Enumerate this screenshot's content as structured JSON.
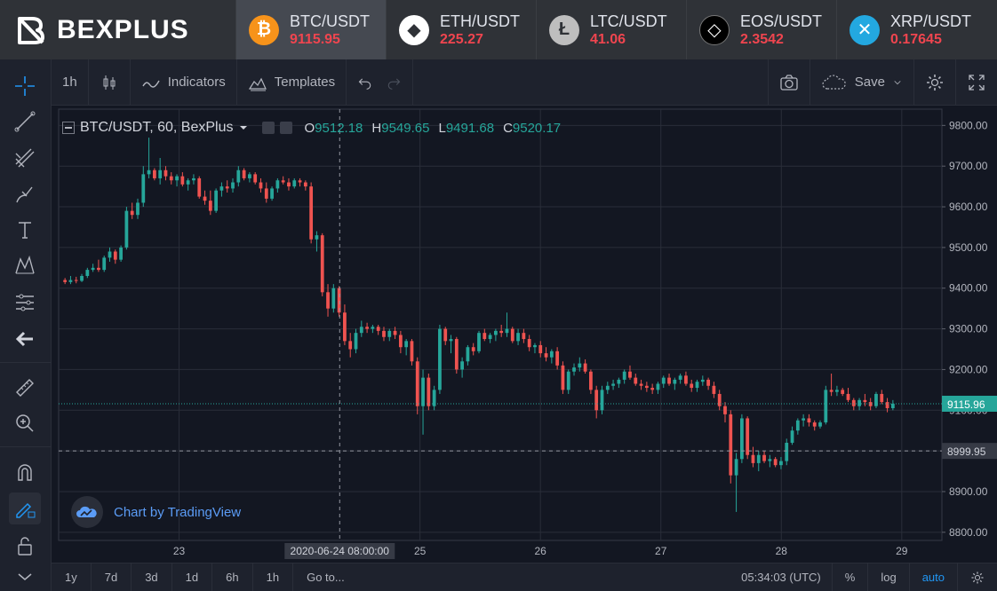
{
  "brand": {
    "name": "BEXPLUS"
  },
  "tickers": [
    {
      "pair": "BTC/USDT",
      "price": "9115.95",
      "icon": "bitcoin-icon",
      "color": "#f7931a",
      "glyph": "₿",
      "active": true
    },
    {
      "pair": "ETH/USDT",
      "price": "225.27",
      "icon": "ethereum-icon",
      "color": "#ffffff",
      "glyph": "◆",
      "active": false
    },
    {
      "pair": "LTC/USDT",
      "price": "41.06",
      "icon": "litecoin-icon",
      "color": "#bebebe",
      "glyph": "Ł",
      "active": false
    },
    {
      "pair": "EOS/USDT",
      "price": "2.3542",
      "icon": "eos-icon",
      "color": "#000000",
      "glyph": "◇",
      "active": false
    },
    {
      "pair": "XRP/USDT",
      "price": "0.17645",
      "icon": "ripple-icon",
      "color": "#23a8e0",
      "glyph": "✕",
      "active": false
    }
  ],
  "toolbar": {
    "interval": "1h",
    "indicators": "Indicators",
    "templates": "Templates",
    "save": "Save"
  },
  "legend": {
    "symbol": "BTC/USDT, 60, BexPlus",
    "open_label": "O",
    "open": "9512.18",
    "high_label": "H",
    "high": "9549.65",
    "low_label": "L",
    "low": "9491.68",
    "close_label": "C",
    "close": "9520.17"
  },
  "watermark": "Chart by TradingView",
  "bottombar": {
    "timeframes": [
      "1y",
      "7d",
      "3d",
      "1d",
      "6h",
      "1h"
    ],
    "goto": "Go to...",
    "clock": "05:34:03 (UTC)",
    "percent": "%",
    "log": "log",
    "auto": "auto"
  },
  "colors": {
    "up": "#26a69a",
    "down": "#ef5350",
    "grid": "#2a2e39",
    "bg": "#131722"
  },
  "chart_data": {
    "type": "candlestick",
    "ylim": [
      8780,
      9840
    ],
    "yticks": [
      8800,
      8900,
      9000,
      9100,
      9200,
      9300,
      9400,
      9500,
      9600,
      9700,
      9800
    ],
    "ytick_labels": [
      "8800.00",
      "8900.00",
      "9000.00",
      "9100.00",
      "9200.00",
      "9300.00",
      "9400.00",
      "9500.00",
      "9600.00",
      "9700.00",
      "9800.00"
    ],
    "x_start_hour": 0,
    "x_end_hour": 176,
    "xticks": [
      {
        "label": "23",
        "hour": 24
      },
      {
        "label": "25",
        "hour": 72
      },
      {
        "label": "26",
        "hour": 96
      },
      {
        "label": "27",
        "hour": 120
      },
      {
        "label": "28",
        "hour": 144
      },
      {
        "label": "29",
        "hour": 168
      }
    ],
    "crosshair": {
      "hour": 56,
      "price": 8999.95,
      "time_label": "2020-06-24 08:00:00",
      "price_label": "8999.95"
    },
    "last_price": {
      "price": 9115.96,
      "label": "9115.96"
    },
    "candles": [
      [
        9420,
        9425,
        9410,
        9415
      ],
      [
        9415,
        9430,
        9410,
        9420
      ],
      [
        9420,
        9428,
        9412,
        9418
      ],
      [
        9418,
        9435,
        9415,
        9430
      ],
      [
        9430,
        9450,
        9425,
        9445
      ],
      [
        9445,
        9460,
        9440,
        9450
      ],
      [
        9450,
        9470,
        9440,
        9445
      ],
      [
        9445,
        9480,
        9440,
        9475
      ],
      [
        9475,
        9500,
        9465,
        9490
      ],
      [
        9490,
        9495,
        9460,
        9470
      ],
      [
        9470,
        9505,
        9465,
        9500
      ],
      [
        9500,
        9600,
        9495,
        9590
      ],
      [
        9590,
        9610,
        9570,
        9580
      ],
      [
        9580,
        9620,
        9570,
        9610
      ],
      [
        9610,
        9700,
        9600,
        9680
      ],
      [
        9680,
        9770,
        9670,
        9690
      ],
      [
        9690,
        9695,
        9665,
        9670
      ],
      [
        9670,
        9720,
        9655,
        9690
      ],
      [
        9690,
        9700,
        9665,
        9675
      ],
      [
        9675,
        9685,
        9655,
        9665
      ],
      [
        9665,
        9680,
        9650,
        9675
      ],
      [
        9675,
        9685,
        9650,
        9655
      ],
      [
        9655,
        9670,
        9640,
        9665
      ],
      [
        9665,
        9680,
        9655,
        9670
      ],
      [
        9670,
        9675,
        9620,
        9625
      ],
      [
        9625,
        9640,
        9605,
        9615
      ],
      [
        9615,
        9640,
        9580,
        9590
      ],
      [
        9590,
        9645,
        9585,
        9640
      ],
      [
        9640,
        9660,
        9625,
        9650
      ],
      [
        9650,
        9665,
        9635,
        9645
      ],
      [
        9645,
        9670,
        9635,
        9660
      ],
      [
        9660,
        9700,
        9650,
        9690
      ],
      [
        9690,
        9695,
        9665,
        9670
      ],
      [
        9670,
        9685,
        9660,
        9680
      ],
      [
        9680,
        9685,
        9655,
        9660
      ],
      [
        9660,
        9670,
        9635,
        9645
      ],
      [
        9645,
        9660,
        9610,
        9620
      ],
      [
        9620,
        9650,
        9615,
        9645
      ],
      [
        9645,
        9670,
        9635,
        9665
      ],
      [
        9665,
        9675,
        9655,
        9660
      ],
      [
        9660,
        9670,
        9640,
        9650
      ],
      [
        9650,
        9670,
        9645,
        9665
      ],
      [
        9665,
        9670,
        9650,
        9660
      ],
      [
        9660,
        9665,
        9640,
        9650
      ],
      [
        9650,
        9660,
        9510,
        9520
      ],
      [
        9520,
        9540,
        9490,
        9530
      ],
      [
        9530,
        9535,
        9380,
        9390
      ],
      [
        9390,
        9410,
        9330,
        9350
      ],
      [
        9350,
        9410,
        9340,
        9400
      ],
      [
        9400,
        9405,
        9330,
        9340
      ],
      [
        9340,
        9360,
        9260,
        9270
      ],
      [
        9270,
        9290,
        9230,
        9250
      ],
      [
        9250,
        9300,
        9240,
        9290
      ],
      [
        9290,
        9320,
        9280,
        9305
      ],
      [
        9305,
        9315,
        9290,
        9300
      ],
      [
        9300,
        9310,
        9290,
        9305
      ],
      [
        9305,
        9310,
        9285,
        9295
      ],
      [
        9295,
        9305,
        9270,
        9280
      ],
      [
        9280,
        9300,
        9270,
        9295
      ],
      [
        9295,
        9305,
        9275,
        9285
      ],
      [
        9285,
        9295,
        9240,
        9255
      ],
      [
        9255,
        9275,
        9235,
        9270
      ],
      [
        9270,
        9275,
        9210,
        9220
      ],
      [
        9220,
        9230,
        9090,
        9110
      ],
      [
        9110,
        9200,
        9040,
        9180
      ],
      [
        9180,
        9190,
        9100,
        9110
      ],
      [
        9110,
        9160,
        9100,
        9150
      ],
      [
        9150,
        9310,
        9140,
        9300
      ],
      [
        9300,
        9305,
        9260,
        9270
      ],
      [
        9270,
        9285,
        9240,
        9275
      ],
      [
        9275,
        9280,
        9190,
        9200
      ],
      [
        9200,
        9230,
        9180,
        9220
      ],
      [
        9220,
        9260,
        9210,
        9255
      ],
      [
        9255,
        9265,
        9235,
        9245
      ],
      [
        9245,
        9295,
        9240,
        9290
      ],
      [
        9290,
        9300,
        9270,
        9275
      ],
      [
        9275,
        9290,
        9265,
        9285
      ],
      [
        9285,
        9300,
        9270,
        9295
      ],
      [
        9295,
        9310,
        9280,
        9290
      ],
      [
        9290,
        9340,
        9280,
        9300
      ],
      [
        9300,
        9305,
        9265,
        9270
      ],
      [
        9270,
        9300,
        9260,
        9290
      ],
      [
        9290,
        9300,
        9265,
        9275
      ],
      [
        9275,
        9285,
        9245,
        9255
      ],
      [
        9255,
        9265,
        9240,
        9260
      ],
      [
        9260,
        9270,
        9230,
        9240
      ],
      [
        9240,
        9255,
        9220,
        9230
      ],
      [
        9230,
        9250,
        9215,
        9245
      ],
      [
        9245,
        9255,
        9200,
        9210
      ],
      [
        9210,
        9220,
        9140,
        9150
      ],
      [
        9150,
        9200,
        9140,
        9195
      ],
      [
        9195,
        9215,
        9185,
        9205
      ],
      [
        9205,
        9230,
        9195,
        9215
      ],
      [
        9215,
        9225,
        9190,
        9195
      ],
      [
        9195,
        9200,
        9140,
        9150
      ],
      [
        9150,
        9160,
        9080,
        9100
      ],
      [
        9100,
        9160,
        9090,
        9150
      ],
      [
        9150,
        9170,
        9140,
        9160
      ],
      [
        9160,
        9175,
        9150,
        9165
      ],
      [
        9165,
        9180,
        9155,
        9175
      ],
      [
        9175,
        9200,
        9165,
        9195
      ],
      [
        9195,
        9210,
        9175,
        9180
      ],
      [
        9180,
        9190,
        9160,
        9165
      ],
      [
        9165,
        9175,
        9150,
        9160
      ],
      [
        9160,
        9170,
        9145,
        9155
      ],
      [
        9155,
        9165,
        9140,
        9150
      ],
      [
        9150,
        9170,
        9140,
        9165
      ],
      [
        9165,
        9185,
        9155,
        9180
      ],
      [
        9180,
        9190,
        9160,
        9165
      ],
      [
        9165,
        9180,
        9150,
        9175
      ],
      [
        9175,
        9190,
        9165,
        9185
      ],
      [
        9185,
        9195,
        9160,
        9165
      ],
      [
        9165,
        9175,
        9145,
        9155
      ],
      [
        9155,
        9175,
        9145,
        9170
      ],
      [
        9170,
        9185,
        9160,
        9175
      ],
      [
        9175,
        9180,
        9150,
        9160
      ],
      [
        9160,
        9170,
        9130,
        9140
      ],
      [
        9140,
        9150,
        9100,
        9110
      ],
      [
        9110,
        9120,
        9070,
        9090
      ],
      [
        9090,
        9100,
        8920,
        8940
      ],
      [
        8940,
        8995,
        8850,
        8980
      ],
      [
        8980,
        9090,
        8970,
        9080
      ],
      [
        9080,
        9085,
        8980,
        8990
      ],
      [
        8990,
        9010,
        8960,
        8970
      ],
      [
        8970,
        9000,
        8950,
        8990
      ],
      [
        8990,
        9000,
        8970,
        8975
      ],
      [
        8975,
        8990,
        8960,
        8980
      ],
      [
        8980,
        8985,
        8960,
        8965
      ],
      [
        8965,
        8985,
        8955,
        8975
      ],
      [
        8975,
        9030,
        8965,
        9020
      ],
      [
        9020,
        9060,
        9015,
        9050
      ],
      [
        9050,
        9080,
        9040,
        9075
      ],
      [
        9075,
        9090,
        9060,
        9080
      ],
      [
        9080,
        9090,
        9060,
        9070
      ],
      [
        9070,
        9075,
        9050,
        9060
      ],
      [
        9060,
        9075,
        9055,
        9070
      ],
      [
        9070,
        9160,
        9065,
        9150
      ],
      [
        9150,
        9190,
        9135,
        9145
      ],
      [
        9145,
        9160,
        9135,
        9150
      ],
      [
        9150,
        9155,
        9135,
        9140
      ],
      [
        9140,
        9155,
        9120,
        9125
      ],
      [
        9125,
        9130,
        9100,
        9110
      ],
      [
        9110,
        9130,
        9100,
        9125
      ],
      [
        9125,
        9140,
        9110,
        9120
      ],
      [
        9120,
        9130,
        9100,
        9110
      ],
      [
        9110,
        9145,
        9105,
        9140
      ],
      [
        9140,
        9150,
        9115,
        9120
      ],
      [
        9120,
        9130,
        9095,
        9105
      ],
      [
        9105,
        9125,
        9100,
        9116
      ]
    ]
  }
}
